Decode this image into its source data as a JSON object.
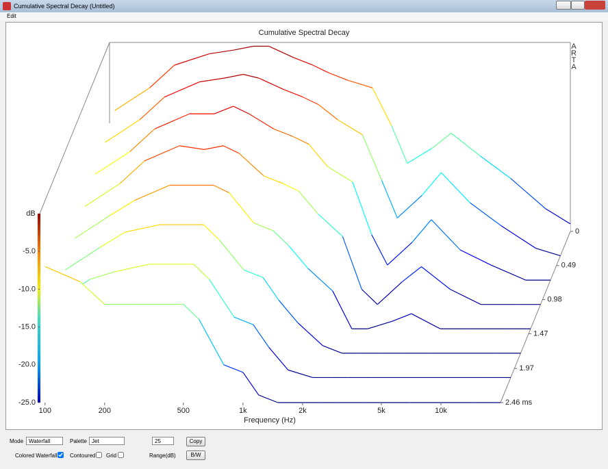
{
  "window": {
    "title": "Cumulative Spectral Decay  (Untitled)",
    "menu": [
      "Edit"
    ]
  },
  "chart_data": {
    "type": "waterfall",
    "title": "Cumulative Spectral Decay",
    "watermark": "ARTA",
    "xlabel": "Frequency (Hz)",
    "ylabel": "dB",
    "log_x": true,
    "palette": "jet",
    "xlim": [
      94,
      20000
    ],
    "xticks": [
      100,
      200,
      500,
      {
        "value": 1000,
        "label": "1k"
      },
      {
        "value": 2000,
        "label": "2k"
      },
      {
        "value": 5000,
        "label": "5k"
      },
      {
        "value": 10000,
        "label": "10k"
      }
    ],
    "ylim": [
      -25,
      0
    ],
    "yticks": [
      {
        "value": -5,
        "label": "-5.0"
      },
      {
        "value": -10,
        "label": "-10.0"
      },
      {
        "value": -15,
        "label": "-15.0"
      },
      {
        "value": -20,
        "label": "-20.0"
      },
      {
        "value": -25,
        "label": "-25.0"
      }
    ],
    "zlim": [
      0,
      2.46
    ],
    "zticks": [
      0,
      0.49,
      0.98,
      1.47,
      1.97,
      {
        "value": 2.46,
        "label": "2.46 ms"
      }
    ],
    "frequencies": [
      100,
      150,
      200,
      300,
      400,
      500,
      600,
      800,
      1000,
      1200,
      1500,
      2000,
      2500,
      3000,
      4000,
      5000,
      7000,
      10000,
      15000,
      20000
    ],
    "slices": [
      {
        "time": 0,
        "values": [
          -9,
          -6,
          -3,
          -1.5,
          -1,
          -0.5,
          -0.5,
          -2,
          -3,
          -4,
          -5,
          -6,
          -11,
          -16,
          -14,
          -12,
          -15,
          -18,
          -22,
          -24
        ]
      },
      {
        "time": 0.35,
        "values": [
          -10,
          -7,
          -4,
          -2,
          -1.5,
          -1,
          -1.5,
          -3,
          -4,
          -5,
          -7,
          -9,
          -15,
          -20,
          -17,
          -14,
          -18,
          -21,
          -24,
          -25
        ]
      },
      {
        "time": 0.7,
        "values": [
          -11,
          -8,
          -5,
          -3,
          -3,
          -2,
          -3,
          -5,
          -6,
          -7,
          -10,
          -12,
          -19,
          -23,
          -20,
          -17,
          -21,
          -23,
          -25,
          -25
        ]
      },
      {
        "time": 1.05,
        "values": [
          -12,
          -9,
          -6,
          -4,
          -4.5,
          -4,
          -5,
          -8,
          -9,
          -10,
          -13,
          -16,
          -23,
          -25,
          -22,
          -20,
          -23,
          -25,
          -25,
          -25
        ]
      },
      {
        "time": 1.4,
        "values": [
          -13,
          -10,
          -8,
          -6,
          -6,
          -6,
          -7,
          -11,
          -12,
          -14,
          -17,
          -20,
          -25,
          -25,
          -24,
          -23,
          -25,
          -25,
          -25,
          -25
        ]
      },
      {
        "time": 1.75,
        "values": [
          -14,
          -11,
          -9,
          -8,
          -8,
          -8,
          -10,
          -14,
          -15,
          -18,
          -21,
          -24,
          -25,
          -25,
          -25,
          -25,
          -25,
          -25,
          -25,
          -25
        ]
      },
      {
        "time": 2.1,
        "values": [
          -15,
          -12,
          -11,
          -10,
          -10,
          -10,
          -12,
          -17,
          -18,
          -21,
          -24,
          -25,
          -25,
          -25,
          -25,
          -25,
          -25,
          -25,
          -25,
          -25
        ]
      },
      {
        "time": 2.46,
        "values": [
          -7,
          -9,
          -12,
          -12,
          -12,
          -12,
          -14,
          -20,
          -21,
          -24,
          -25,
          -25,
          -25,
          -25,
          -25,
          -25,
          -25,
          -25,
          -25,
          -25
        ]
      }
    ]
  },
  "controls": {
    "mode_label": "Mode",
    "mode": "Waterfall",
    "palette_label": "Palette",
    "palette": "Jet",
    "range": 25,
    "copy": "Copy",
    "colored_waterfall": "Colored Waterfall",
    "colored_checked": true,
    "contoured": "Contoured",
    "contoured_checked": false,
    "grid": "Grid",
    "grid_checked": false,
    "range_label": "Range(dB)",
    "bw": "B/W"
  }
}
